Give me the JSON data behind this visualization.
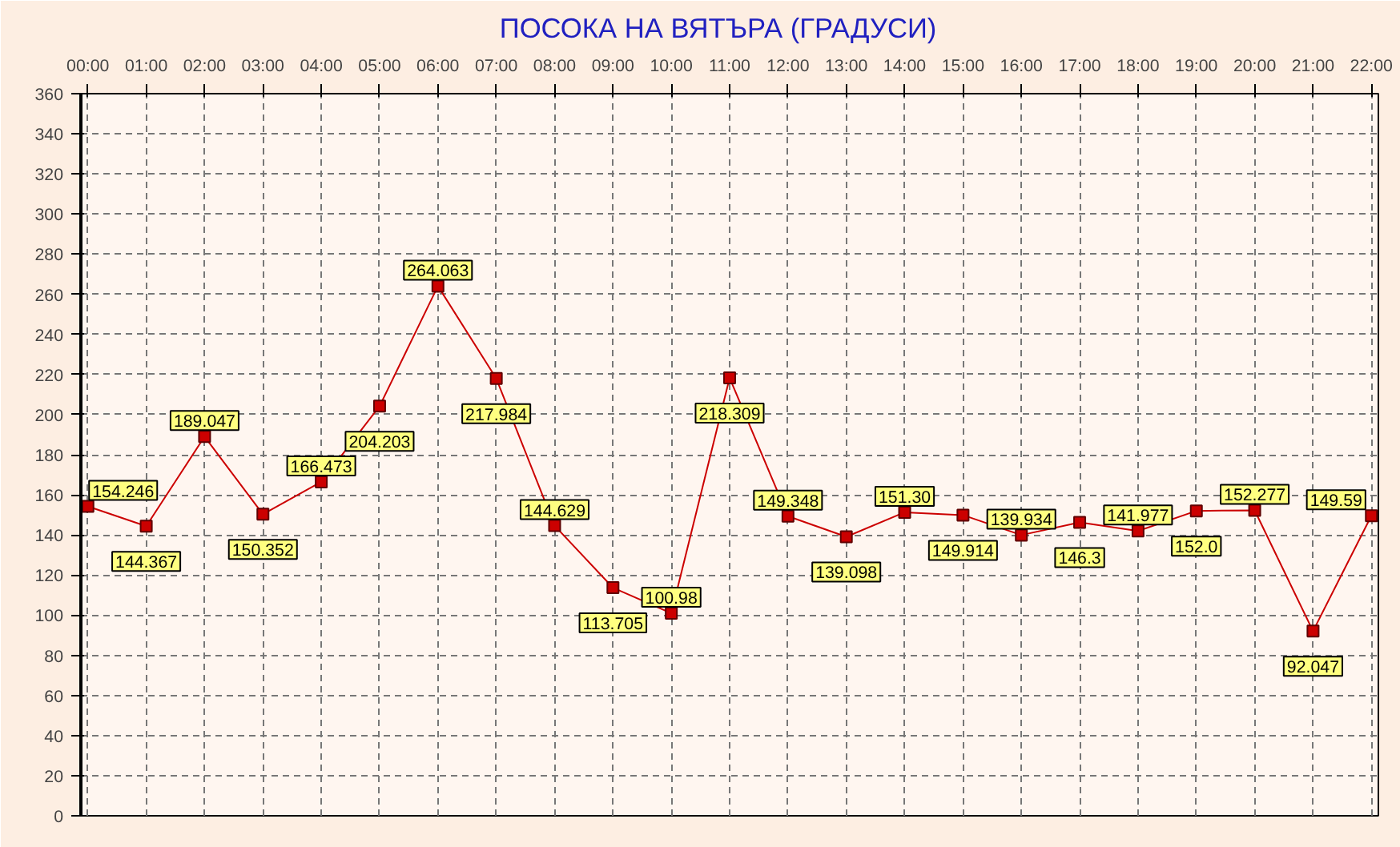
{
  "chart_data": {
    "type": "line",
    "title": "ПОСОКА НА ВЯТЪРА    (ГРАДУСИ)",
    "x": [
      0,
      1,
      2,
      3,
      4,
      5,
      6,
      7,
      8,
      9,
      10,
      11,
      12,
      13,
      14,
      15,
      16,
      17,
      18,
      19,
      20,
      21,
      22
    ],
    "series": [
      {
        "color": "#cc0000",
        "values": [
          154.246,
          144.367,
          189.047,
          150.352,
          166.473,
          204.203,
          264.063,
          217.984,
          144.629,
          113.705,
          100.98,
          218.309,
          149.348,
          139.098,
          151.3,
          149.914,
          139.934,
          146.3,
          141.977,
          152.0,
          152.277,
          92.047,
          149.59
        ],
        "value_labels": [
          "154.246",
          "144.367",
          "189.047",
          "150.352",
          "166.473",
          "204.203",
          "264.063",
          "217.984",
          "144.629",
          "113.705",
          "100.98",
          "218.309",
          "149.348",
          "139.098",
          "151.30",
          "149.914",
          "139.934",
          "146.3",
          "141.977",
          "152.0",
          "152.277",
          "92.047",
          "149.59"
        ]
      }
    ],
    "xlim": [
      -0.12,
      22.12
    ],
    "xticks": [
      {
        "value": 0,
        "label": "00:00"
      },
      {
        "value": 1,
        "label": "01:00"
      },
      {
        "value": 2,
        "label": "02:00"
      },
      {
        "value": 3,
        "label": "03:00"
      },
      {
        "value": 4,
        "label": "04:00"
      },
      {
        "value": 5,
        "label": "05:00"
      },
      {
        "value": 6,
        "label": "06:00"
      },
      {
        "value": 7,
        "label": "07:00"
      },
      {
        "value": 8,
        "label": "08:00"
      },
      {
        "value": 9,
        "label": "09:00"
      },
      {
        "value": 10,
        "label": "10:00"
      },
      {
        "value": 11,
        "label": "11:00"
      },
      {
        "value": 12,
        "label": "12:00"
      },
      {
        "value": 13,
        "label": "13:00"
      },
      {
        "value": 14,
        "label": "14:00"
      },
      {
        "value": 15,
        "label": "15:00"
      },
      {
        "value": 16,
        "label": "16:00"
      },
      {
        "value": 17,
        "label": "17:00"
      },
      {
        "value": 18,
        "label": "18:00"
      },
      {
        "value": 19,
        "label": "19:00"
      },
      {
        "value": 20,
        "label": "20:00"
      },
      {
        "value": 21,
        "label": "21:00"
      },
      {
        "value": 22,
        "label": "22:00"
      }
    ],
    "ylim": [
      0,
      360
    ],
    "yticks": [
      0,
      20,
      40,
      60,
      80,
      100,
      120,
      140,
      160,
      180,
      200,
      220,
      240,
      260,
      280,
      300,
      320,
      340,
      360
    ],
    "grid": true,
    "marker": "square",
    "line_style": "solid"
  }
}
